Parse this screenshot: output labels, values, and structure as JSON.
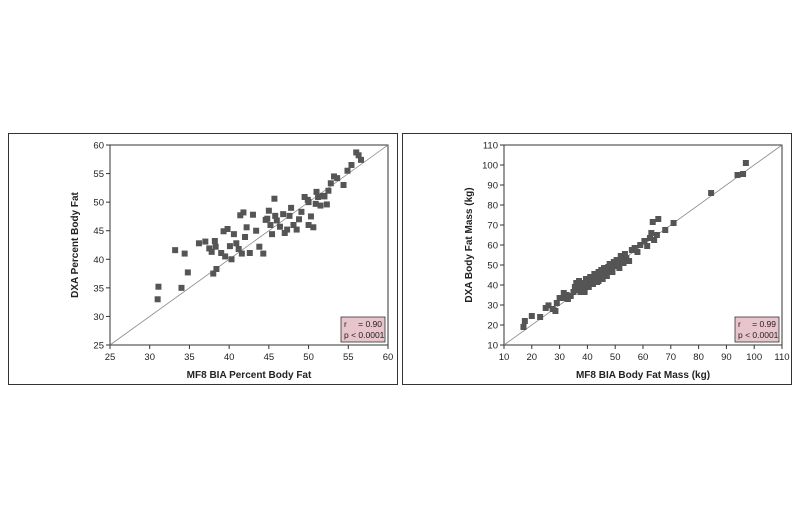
{
  "chart_data": [
    {
      "type": "scatter",
      "xlabel": "MF8 BIA Percent Body Fat",
      "ylabel": "DXA Percent Body Fat",
      "xlim": [
        25,
        60
      ],
      "ylim": [
        25,
        60
      ],
      "xticks": [
        25,
        30,
        35,
        40,
        45,
        50,
        55,
        60
      ],
      "yticks": [
        25,
        30,
        35,
        40,
        45,
        50,
        55,
        60
      ],
      "identity_line": true,
      "grid": false,
      "annotation": {
        "r_label": "r",
        "r_value": "= 0.90",
        "p_text": "p < 0.0001",
        "placement": "bottom-right"
      },
      "points": [
        [
          31.1,
          35.2
        ],
        [
          31.0,
          33.0
        ],
        [
          33.2,
          41.6
        ],
        [
          34.0,
          35.0
        ],
        [
          34.4,
          41.0
        ],
        [
          34.8,
          37.7
        ],
        [
          36.2,
          42.8
        ],
        [
          37.0,
          43.1
        ],
        [
          37.5,
          41.9
        ],
        [
          37.8,
          41.3
        ],
        [
          38.3,
          42.2
        ],
        [
          38.0,
          37.5
        ],
        [
          38.4,
          38.3
        ],
        [
          38.2,
          43.2
        ],
        [
          39.0,
          41.1
        ],
        [
          39.5,
          40.5
        ],
        [
          39.8,
          45.3
        ],
        [
          40.1,
          42.3
        ],
        [
          40.3,
          40.0
        ],
        [
          40.6,
          44.4
        ],
        [
          40.9,
          42.8
        ],
        [
          41.2,
          41.8
        ],
        [
          41.4,
          47.7
        ],
        [
          41.8,
          48.2
        ],
        [
          42.2,
          45.6
        ],
        [
          42.6,
          41.1
        ],
        [
          43.0,
          47.8
        ],
        [
          43.4,
          45.0
        ],
        [
          43.8,
          42.2
        ],
        [
          44.3,
          41.0
        ],
        [
          44.8,
          47.1
        ],
        [
          45.0,
          48.5
        ],
        [
          45.2,
          46.0
        ],
        [
          45.4,
          44.4
        ],
        [
          45.8,
          47.6
        ],
        [
          46.0,
          46.8
        ],
        [
          45.7,
          50.6
        ],
        [
          46.4,
          45.7
        ],
        [
          47.0,
          44.6
        ],
        [
          47.3,
          45.2
        ],
        [
          47.6,
          47.6
        ],
        [
          48.1,
          46.0
        ],
        [
          48.5,
          45.2
        ],
        [
          48.8,
          47.0
        ],
        [
          49.1,
          48.3
        ],
        [
          49.5,
          50.9
        ],
        [
          49.9,
          50.4
        ],
        [
          50.0,
          46.0
        ],
        [
          50.3,
          47.5
        ],
        [
          50.6,
          45.6
        ],
        [
          50.9,
          49.7
        ],
        [
          51.2,
          50.9
        ],
        [
          51.5,
          49.4
        ],
        [
          51.8,
          51.1
        ],
        [
          52.0,
          51.0
        ],
        [
          52.3,
          49.6
        ],
        [
          52.8,
          53.3
        ],
        [
          52.5,
          52.0
        ],
        [
          53.2,
          54.5
        ],
        [
          53.6,
          54.2
        ],
        [
          54.4,
          53.0
        ],
        [
          54.9,
          55.5
        ],
        [
          55.4,
          56.5
        ],
        [
          56.0,
          58.7
        ],
        [
          56.3,
          58.2
        ],
        [
          56.6,
          57.4
        ],
        [
          51.0,
          51.8
        ],
        [
          50.0,
          50.0
        ],
        [
          46.8,
          47.9
        ],
        [
          44.6,
          46.9
        ],
        [
          42.0,
          43.9
        ],
        [
          39.3,
          44.9
        ],
        [
          41.6,
          41.0
        ],
        [
          47.8,
          49.0
        ]
      ]
    },
    {
      "type": "scatter",
      "xlabel": "MF8 BIA Body Fat Mass (kg)",
      "ylabel": "DXA Body Fat Mass (kg)",
      "xlim": [
        10,
        110
      ],
      "ylim": [
        10,
        110
      ],
      "xticks": [
        10,
        20,
        30,
        40,
        50,
        60,
        70,
        80,
        90,
        100,
        110
      ],
      "yticks": [
        10,
        20,
        30,
        40,
        50,
        60,
        70,
        80,
        90,
        100,
        110
      ],
      "identity_line": true,
      "grid": false,
      "annotation": {
        "r_label": "r",
        "r_value": "= 0.99",
        "p_text": "p < 0.0001",
        "placement": "bottom-right"
      },
      "points": [
        [
          17.0,
          19.0
        ],
        [
          17.5,
          22.0
        ],
        [
          20.0,
          24.5
        ],
        [
          23.0,
          24.0
        ],
        [
          25.0,
          28.5
        ],
        [
          26.0,
          29.8
        ],
        [
          27.5,
          28.0
        ],
        [
          28.5,
          27.0
        ],
        [
          29.0,
          31.0
        ],
        [
          30.0,
          33.5
        ],
        [
          31.0,
          33.5
        ],
        [
          31.5,
          36.0
        ],
        [
          32.5,
          35.0
        ],
        [
          33.0,
          33.0
        ],
        [
          34.0,
          34.5
        ],
        [
          35.0,
          36.5
        ],
        [
          35.5,
          39.0
        ],
        [
          36.0,
          37.5
        ],
        [
          36.5,
          40.5
        ],
        [
          37.0,
          42.0
        ],
        [
          37.5,
          36.5
        ],
        [
          38.0,
          39.5
        ],
        [
          38.5,
          41.0
        ],
        [
          39.0,
          38.0
        ],
        [
          39.5,
          43.0
        ],
        [
          40.0,
          41.5
        ],
        [
          40.5,
          39.0
        ],
        [
          41.0,
          44.0
        ],
        [
          41.5,
          42.5
        ],
        [
          42.0,
          40.5
        ],
        [
          42.5,
          45.5
        ],
        [
          43.0,
          43.5
        ],
        [
          43.5,
          41.5
        ],
        [
          44.0,
          46.5
        ],
        [
          44.5,
          45.0
        ],
        [
          45.0,
          47.5
        ],
        [
          45.5,
          43.0
        ],
        [
          46.0,
          48.5
        ],
        [
          46.5,
          46.0
        ],
        [
          47.0,
          44.5
        ],
        [
          47.5,
          49.0
        ],
        [
          48.0,
          50.5
        ],
        [
          48.5,
          47.5
        ],
        [
          49.0,
          46.5
        ],
        [
          49.5,
          51.5
        ],
        [
          50.0,
          49.5
        ],
        [
          50.5,
          52.5
        ],
        [
          51.0,
          50.5
        ],
        [
          51.5,
          48.5
        ],
        [
          52.0,
          54.5
        ],
        [
          52.5,
          53.0
        ],
        [
          53.0,
          51.0
        ],
        [
          53.5,
          55.5
        ],
        [
          54.0,
          53.5
        ],
        [
          55.0,
          52.0
        ],
        [
          56.0,
          57.5
        ],
        [
          57.0,
          58.5
        ],
        [
          58.0,
          56.5
        ],
        [
          59.0,
          60.0
        ],
        [
          60.5,
          62.0
        ],
        [
          61.5,
          59.5
        ],
        [
          62.5,
          63.5
        ],
        [
          63.0,
          66.0
        ],
        [
          64.0,
          62.5
        ],
        [
          65.0,
          65.0
        ],
        [
          63.5,
          71.5
        ],
        [
          65.5,
          73.0
        ],
        [
          68.0,
          67.5
        ],
        [
          71.0,
          71.0
        ],
        [
          84.5,
          86.0
        ],
        [
          94.0,
          95.0
        ],
        [
          96.0,
          95.5
        ],
        [
          97.0,
          101.0
        ],
        [
          36.0,
          41.0
        ],
        [
          44.0,
          42.0
        ],
        [
          39.0,
          36.5
        ]
      ]
    }
  ]
}
